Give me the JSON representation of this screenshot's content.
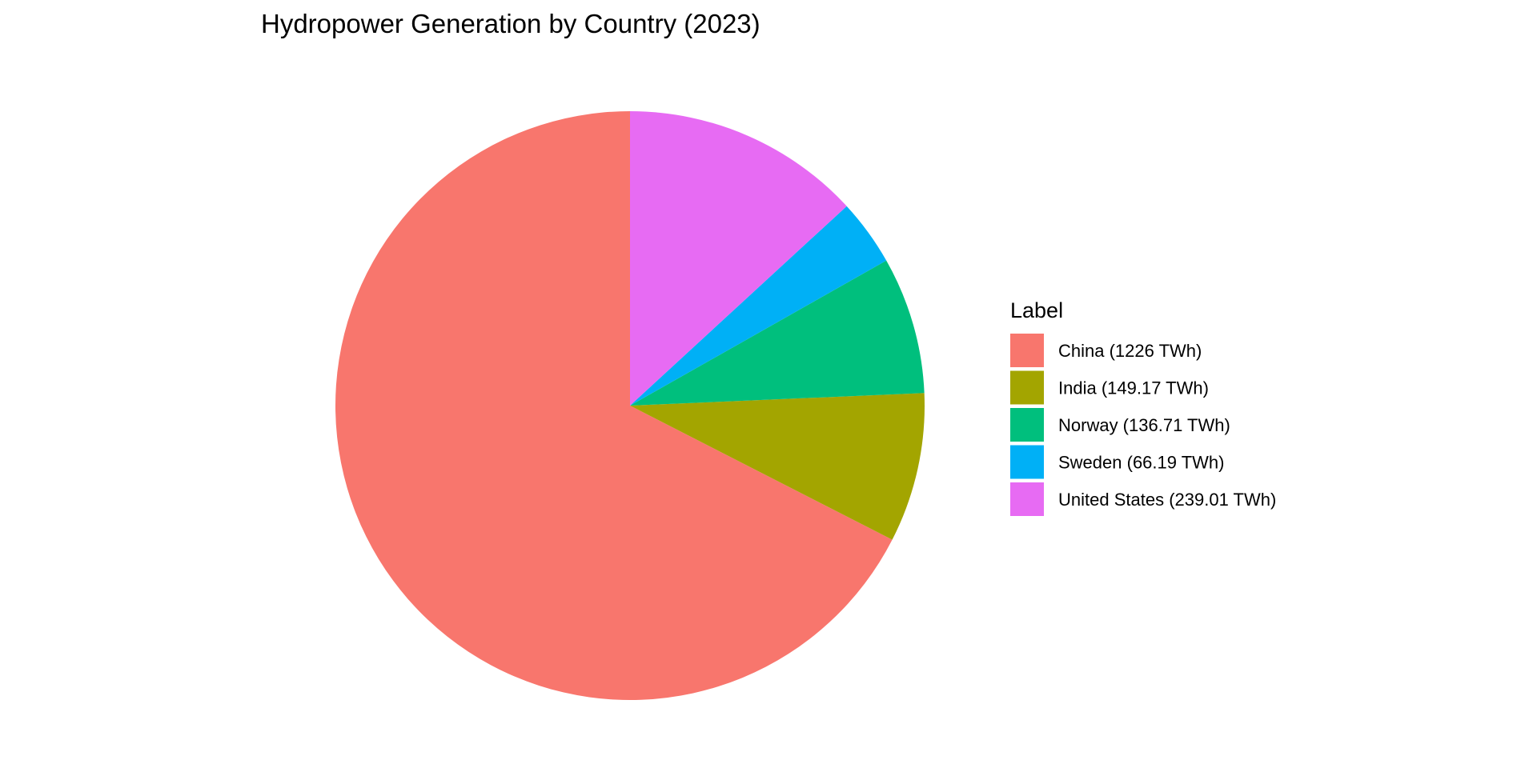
{
  "chart_data": {
    "type": "pie",
    "title": "Hydropower Generation by Country (2023)",
    "legend": {
      "title": "Label",
      "position": "right"
    },
    "unit": "TWh",
    "slices": [
      {
        "category": "China",
        "value": 1226,
        "label": "China (1226 TWh)",
        "color": "#F8766D"
      },
      {
        "category": "India",
        "value": 149.17,
        "label": "India (149.17 TWh)",
        "color": "#A3A500"
      },
      {
        "category": "Norway",
        "value": 136.71,
        "label": "Norway (136.71 TWh)",
        "color": "#00BF7D"
      },
      {
        "category": "Sweden",
        "value": 66.19,
        "label": "Sweden (66.19 TWh)",
        "color": "#00B0F6"
      },
      {
        "category": "United States",
        "value": 239.01,
        "label": "United States (239.01 TWh)",
        "color": "#E76BF3"
      }
    ]
  }
}
